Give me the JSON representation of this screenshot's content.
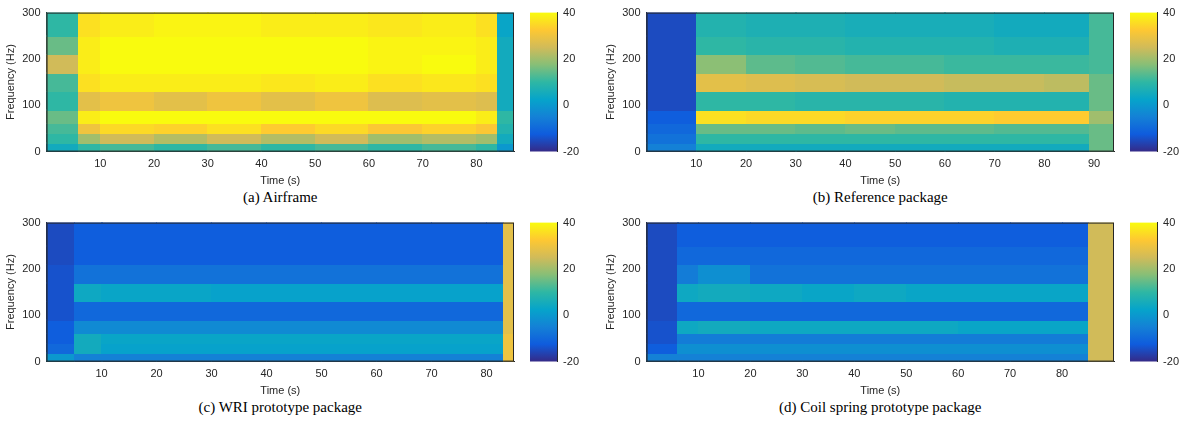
{
  "chart_data": [
    {
      "type": "heatmap",
      "title": "(a) Airframe",
      "x_label": "Time (s)",
      "y_label": "Frequency (Hz)",
      "xlim": [
        0,
        87
      ],
      "xticks": [
        10,
        20,
        30,
        40,
        50,
        60,
        70,
        80
      ],
      "ylim": [
        0,
        300
      ],
      "yticks": [
        0,
        100,
        200,
        300
      ],
      "grid": false,
      "time_bins": [
        0,
        6,
        10,
        20,
        30,
        40,
        50,
        60,
        70,
        80,
        84,
        87
      ],
      "frequency_bins": [
        0,
        20,
        40,
        60,
        90,
        130,
        170,
        210,
        250,
        300
      ],
      "cells": [
        [
          5,
          10,
          12,
          10,
          12,
          10,
          12,
          10,
          12,
          10,
          0
        ],
        [
          10,
          20,
          25,
          22,
          25,
          22,
          25,
          20,
          22,
          20,
          5
        ],
        [
          12,
          30,
          35,
          34,
          36,
          33,
          35,
          32,
          34,
          32,
          8
        ],
        [
          15,
          38,
          40,
          40,
          40,
          40,
          40,
          40,
          40,
          38,
          10
        ],
        [
          10,
          28,
          30,
          28,
          30,
          28,
          30,
          27,
          28,
          27,
          5
        ],
        [
          12,
          36,
          38,
          38,
          38,
          37,
          38,
          36,
          37,
          36,
          5
        ],
        [
          25,
          38,
          40,
          40,
          40,
          40,
          40,
          39,
          40,
          38,
          5
        ],
        [
          15,
          38,
          40,
          40,
          40,
          40,
          40,
          39,
          39,
          38,
          5
        ],
        [
          10,
          36,
          38,
          39,
          39,
          38,
          38,
          37,
          38,
          36,
          3
        ]
      ],
      "color_range": [
        -20,
        40
      ],
      "color_ticks": [
        -20,
        0,
        20,
        40
      ]
    },
    {
      "type": "heatmap",
      "title": "(b) Reference package",
      "x_label": "Time (s)",
      "y_label": "Frequency (Hz)",
      "xlim": [
        0,
        94
      ],
      "xticks": [
        10,
        20,
        30,
        40,
        50,
        60,
        70,
        80,
        90
      ],
      "ylim": [
        0,
        300
      ],
      "yticks": [
        0,
        100,
        200,
        300
      ],
      "grid": false,
      "time_bins": [
        0,
        10,
        20,
        30,
        40,
        50,
        60,
        70,
        80,
        89,
        94
      ],
      "frequency_bins": [
        0,
        20,
        40,
        60,
        90,
        130,
        170,
        210,
        250,
        300
      ],
      "cells": [
        [
          -5,
          5,
          5,
          5,
          5,
          5,
          5,
          5,
          5,
          15
        ],
        [
          -8,
          10,
          10,
          10,
          10,
          10,
          10,
          10,
          10,
          15
        ],
        [
          -10,
          15,
          15,
          14,
          15,
          14,
          14,
          13,
          13,
          15
        ],
        [
          -12,
          36,
          35,
          35,
          34,
          34,
          34,
          33,
          33,
          20
        ],
        [
          -15,
          10,
          10,
          9,
          9,
          9,
          8,
          8,
          8,
          15
        ],
        [
          -15,
          28,
          27,
          26,
          25,
          25,
          24,
          24,
          23,
          15
        ],
        [
          -15,
          18,
          14,
          13,
          12,
          12,
          11,
          11,
          11,
          12
        ],
        [
          -15,
          10,
          9,
          9,
          8,
          8,
          8,
          7,
          7,
          12
        ],
        [
          -15,
          8,
          7,
          7,
          6,
          6,
          6,
          5,
          5,
          12
        ]
      ],
      "color_range": [
        -20,
        40
      ],
      "color_ticks": [
        -20,
        0,
        20,
        40
      ]
    },
    {
      "type": "heatmap",
      "title": "(c) WRI prototype package",
      "x_label": "Time (s)",
      "y_label": "Frequency (Hz)",
      "xlim": [
        0,
        85
      ],
      "xticks": [
        10,
        20,
        30,
        40,
        50,
        60,
        70,
        80
      ],
      "ylim": [
        0,
        300
      ],
      "yticks": [
        0,
        100,
        200,
        300
      ],
      "grid": false,
      "time_bins": [
        0,
        5,
        10,
        20,
        30,
        40,
        50,
        60,
        70,
        80,
        83,
        85
      ],
      "frequency_bins": [
        0,
        20,
        40,
        60,
        90,
        130,
        170,
        210,
        250,
        300
      ],
      "cells": [
        [
          0,
          -5,
          -5,
          -5,
          -5,
          -5,
          -5,
          -5,
          -5,
          -5,
          30
        ],
        [
          -10,
          5,
          2,
          2,
          2,
          2,
          2,
          2,
          2,
          2,
          30
        ],
        [
          -12,
          5,
          3,
          3,
          3,
          3,
          3,
          3,
          3,
          3,
          30
        ],
        [
          -12,
          -3,
          -3,
          -3,
          -3,
          -3,
          -3,
          -3,
          -3,
          -3,
          28
        ],
        [
          -14,
          -10,
          -10,
          -10,
          -10,
          -10,
          -10,
          -10,
          -10,
          -10,
          28
        ],
        [
          -14,
          4,
          3,
          3,
          2,
          2,
          2,
          2,
          2,
          2,
          28
        ],
        [
          -14,
          -8,
          -8,
          -8,
          -8,
          -8,
          -8,
          -8,
          -8,
          -8,
          28
        ],
        [
          -15,
          -12,
          -12,
          -12,
          -12,
          -12,
          -12,
          -12,
          -12,
          -12,
          28
        ],
        [
          -15,
          -12,
          -12,
          -12,
          -12,
          -12,
          -12,
          -12,
          -12,
          -12,
          28
        ]
      ],
      "color_range": [
        -20,
        40
      ],
      "color_ticks": [
        -20,
        0,
        20,
        40
      ]
    },
    {
      "type": "heatmap",
      "title": "(d) Coil spring prototype package",
      "x_label": "Time (s)",
      "y_label": "Frequency (Hz)",
      "xlim": [
        0,
        90
      ],
      "xticks": [
        10,
        20,
        30,
        40,
        50,
        60,
        70,
        80
      ],
      "ylim": [
        0,
        300
      ],
      "yticks": [
        0,
        100,
        200,
        300
      ],
      "grid": false,
      "time_bins": [
        0,
        6,
        10,
        20,
        30,
        40,
        50,
        60,
        70,
        80,
        85,
        90
      ],
      "frequency_bins": [
        0,
        20,
        40,
        60,
        90,
        130,
        170,
        210,
        250,
        300
      ],
      "cells": [
        [
          -5,
          -5,
          -5,
          -5,
          -5,
          -5,
          -5,
          -5,
          -5,
          -5,
          25
        ],
        [
          -12,
          -2,
          -2,
          -2,
          -2,
          -2,
          -2,
          -2,
          -2,
          -2,
          25
        ],
        [
          -14,
          -6,
          -6,
          -6,
          -6,
          -6,
          -6,
          -6,
          -6,
          -6,
          25
        ],
        [
          -14,
          4,
          5,
          4,
          4,
          4,
          4,
          3,
          3,
          3,
          25
        ],
        [
          -15,
          -10,
          -10,
          -10,
          -10,
          -10,
          -10,
          -10,
          -10,
          -10,
          25
        ],
        [
          -15,
          4,
          5,
          4,
          3,
          4,
          3,
          3,
          3,
          3,
          25
        ],
        [
          -15,
          -6,
          -2,
          -8,
          -8,
          -8,
          -8,
          -8,
          -8,
          -8,
          25
        ],
        [
          -15,
          -10,
          -10,
          -10,
          -10,
          -10,
          -10,
          -10,
          -10,
          -10,
          25
        ],
        [
          -15,
          -12,
          -12,
          -12,
          -12,
          -12,
          -12,
          -12,
          -12,
          -12,
          25
        ]
      ],
      "color_range": [
        -20,
        40
      ],
      "color_ticks": [
        -20,
        0,
        20,
        40
      ]
    }
  ]
}
